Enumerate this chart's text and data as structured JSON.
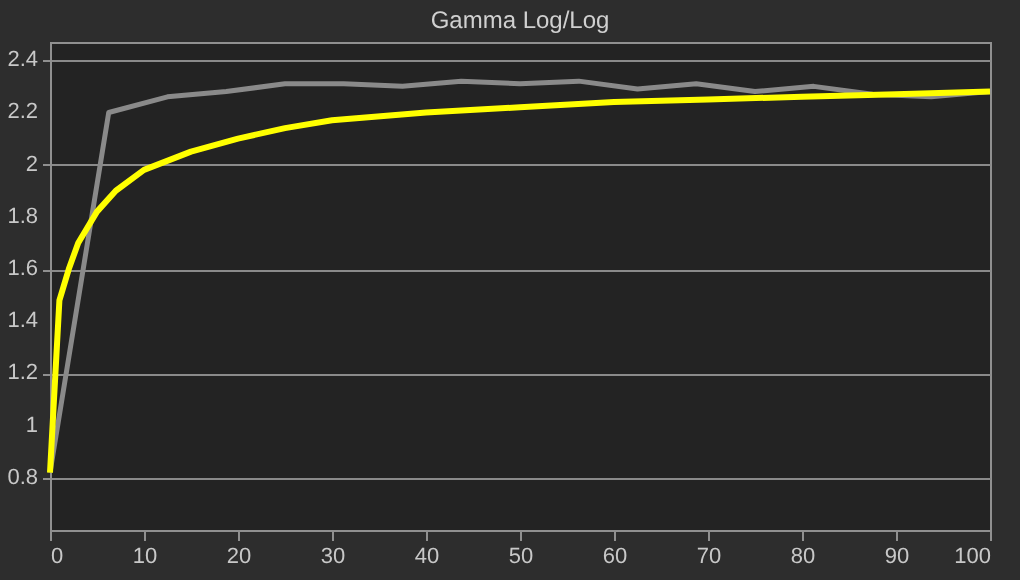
{
  "chart_data": {
    "type": "line",
    "title": "Gamma Log/Log",
    "xlim": [
      0,
      100
    ],
    "xticks": [
      0,
      10,
      20,
      30,
      40,
      50,
      60,
      70,
      80,
      90,
      100
    ],
    "ylim": [
      0.6,
      2.47
    ],
    "yticks": [
      0.8,
      1,
      1.2,
      1.4,
      1.6,
      1.8,
      2,
      2.2,
      2.4
    ],
    "grid": "y",
    "line_style": "solid",
    "marker": "none",
    "series": [
      {
        "color": "#8a8a8a",
        "x": [
          0,
          6.25,
          12.5,
          18.75,
          25,
          31.25,
          37.5,
          43.75,
          50,
          56.25,
          62.5,
          68.75,
          75,
          81.25,
          87.5,
          93.75,
          100
        ],
        "values": [
          0.82,
          2.2,
          2.26,
          2.28,
          2.31,
          2.31,
          2.3,
          2.32,
          2.31,
          2.32,
          2.29,
          2.31,
          2.28,
          2.3,
          2.27,
          2.26,
          2.28
        ]
      },
      {
        "color": "#ffff00",
        "x": [
          0,
          1,
          2,
          3,
          5,
          7,
          10,
          15,
          20,
          25,
          30,
          40,
          50,
          60,
          70,
          80,
          90,
          100
        ],
        "values": [
          0.82,
          1.48,
          1.6,
          1.7,
          1.82,
          1.9,
          1.98,
          2.05,
          2.1,
          2.14,
          2.17,
          2.2,
          2.22,
          2.24,
          2.25,
          2.26,
          2.27,
          2.28
        ]
      }
    ]
  }
}
